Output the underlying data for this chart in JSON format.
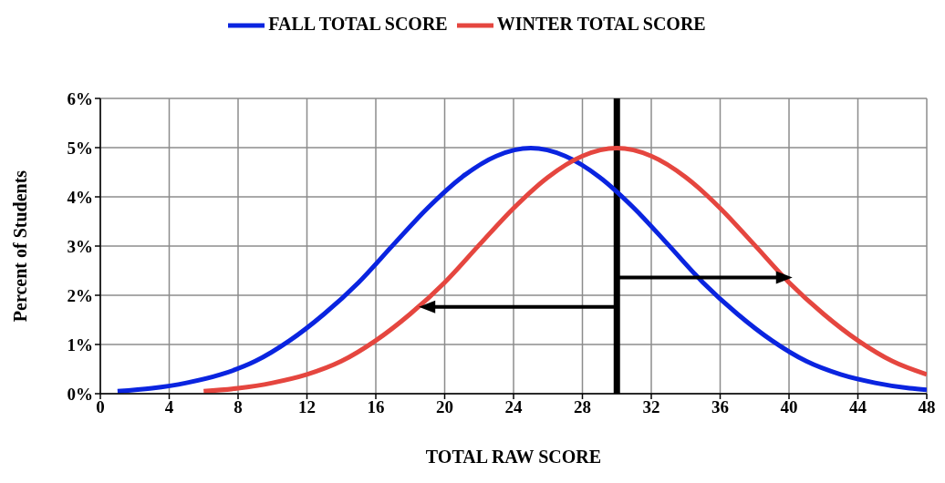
{
  "chart_data": {
    "type": "line",
    "xlabel": "TOTAL RAW SCORE",
    "ylabel": "Percent of Students",
    "xlim": [
      0,
      48
    ],
    "xticks": [
      0,
      4,
      8,
      12,
      16,
      20,
      24,
      28,
      32,
      36,
      40,
      44,
      48
    ],
    "ylim": [
      0,
      6
    ],
    "yticks": [
      {
        "value": 0,
        "label": "0%"
      },
      {
        "value": 1,
        "label": "1%"
      },
      {
        "value": 2,
        "label": "2%"
      },
      {
        "value": 3,
        "label": "3%"
      },
      {
        "value": 4,
        "label": "4%"
      },
      {
        "value": 5,
        "label": "5%"
      },
      {
        "value": 6,
        "label": "6%"
      }
    ],
    "grid": true,
    "legend": "top",
    "marker": "none",
    "line_style": "solid",
    "ref_lines": [
      {
        "axis": "x",
        "value": 30,
        "color": "#000000"
      }
    ],
    "series": [
      {
        "name": "FALL TOTAL SCORE",
        "color": "#0a24e0",
        "x": [
          1,
          3,
          5,
          7,
          9,
          11,
          13,
          15,
          17,
          19,
          21,
          23,
          25,
          27,
          29,
          31,
          33,
          35,
          37,
          39,
          41,
          43,
          45,
          47,
          48
        ],
        "values": [
          0.05,
          0.11,
          0.22,
          0.39,
          0.66,
          1.08,
          1.62,
          2.26,
          3.02,
          3.77,
          4.4,
          4.83,
          4.99,
          4.83,
          4.4,
          3.77,
          3.02,
          2.26,
          1.62,
          1.08,
          0.66,
          0.39,
          0.22,
          0.11,
          0.08
        ]
      },
      {
        "name": "WINTER TOTAL SCORE",
        "color": "#e5463f",
        "x": [
          6,
          8,
          10,
          12,
          14,
          16,
          18,
          20,
          22,
          24,
          26,
          28,
          30,
          32,
          34,
          36,
          38,
          40,
          42,
          44,
          46,
          48
        ],
        "values": [
          0.05,
          0.11,
          0.22,
          0.39,
          0.66,
          1.08,
          1.62,
          2.26,
          3.02,
          3.77,
          4.4,
          4.83,
          4.99,
          4.83,
          4.4,
          3.77,
          3.02,
          2.26,
          1.62,
          1.08,
          0.66,
          0.39
        ]
      }
    ]
  }
}
